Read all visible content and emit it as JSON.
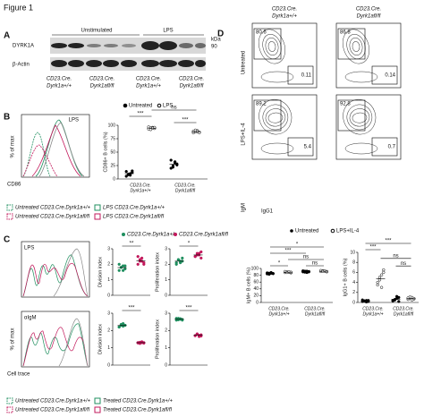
{
  "figure_title": "Figure 1",
  "panel_a": {
    "letter": "A",
    "headers": [
      "Unstimulated",
      "LPS"
    ],
    "rows": [
      "DYRK1A",
      "β-Actin"
    ],
    "kda_unit": "kDa",
    "kda": [
      "90"
    ],
    "lanes": [
      [
        "CD23.Cre.",
        "Dyrk1a+/+"
      ],
      [
        "CD23.Cre.",
        "Dyrk1afl/fl"
      ],
      [
        "CD23.Cre.",
        "Dyrk1a+/+"
      ],
      [
        "CD23.Cre.",
        "Dyrk1afl/fl"
      ]
    ]
  },
  "panel_b": {
    "letter": "B",
    "hist": {
      "label": "LPS",
      "xlabel": "CD86",
      "ylabel": "% of max"
    },
    "dots": {
      "ylabel": "CD86+ B cells (%)",
      "ylim": [
        0,
        100
      ],
      "yticks": [
        0,
        25,
        50,
        75,
        100
      ],
      "legend": [
        "Untreated",
        "LPS"
      ],
      "categories": [
        [
          "CD23.Cre.",
          "Dyrk1a+/+"
        ],
        [
          "CD23.Cre.",
          "Dyrk1afl/fl"
        ]
      ],
      "stars": [
        "***",
        "ns",
        "***"
      ],
      "groups": [
        {
          "color": "#000",
          "fill": "#000",
          "values": [
            5,
            8,
            10,
            12,
            14,
            9,
            7,
            15
          ]
        },
        {
          "color": "#000",
          "fill": "#fff",
          "values": [
            93,
            95,
            96,
            94,
            97,
            92,
            95,
            96
          ]
        },
        {
          "color": "#000",
          "fill": "#000",
          "values": [
            20,
            25,
            30,
            28,
            35,
            22,
            32,
            26
          ]
        },
        {
          "color": "#000",
          "fill": "#fff",
          "values": [
            86,
            88,
            90,
            87,
            89,
            91,
            88,
            86
          ]
        }
      ]
    },
    "legend": [
      "Untreated CD23.Cre.Dyrk1a+/+",
      "LPS CD23.Cre.Dyrk1a+/+",
      "Untreated CD23.Cre.Dyrk1afl/fl",
      "LPS CD23.Cre.Dyrk1afl/fl"
    ]
  },
  "panel_c": {
    "letter": "C",
    "legend": [
      "CD23.Cre.Dyrk1a+/+",
      "CD23.Cre.Dyrk1afl/fl"
    ],
    "hist_xlabel": "Cell trace",
    "hist_ylabel": "% of max",
    "rows": [
      {
        "label": "LPS",
        "plots": [
          {
            "ylabel": "Division index",
            "ylim": [
              0,
              3
            ],
            "yticks": [
              0,
              1,
              2,
              3
            ],
            "stars": [
              "**"
            ],
            "groups": [
              {
                "color": "#1f8f5f",
                "fill": "#1f8f5f",
                "values": [
                  1.6,
                  1.8,
                  1.9,
                  1.7,
                  2.0,
                  1.8,
                  1.6,
                  1.9
                ]
              },
              {
                "color": "#c2185b",
                "fill": "#c2185b",
                "values": [
                  2.0,
                  2.2,
                  2.4,
                  2.1,
                  2.5,
                  2.3,
                  2.2,
                  2.0
                ]
              }
            ]
          },
          {
            "ylabel": "Proliferation index",
            "ylim": [
              0,
              3
            ],
            "yticks": [
              0,
              1,
              2,
              3
            ],
            "stars": [
              "*"
            ],
            "groups": [
              {
                "color": "#1f8f5f",
                "fill": "#1f8f5f",
                "values": [
                  2.1,
                  2.3,
                  2.2,
                  2.4,
                  2.0,
                  2.3,
                  2.1,
                  2.2
                ]
              },
              {
                "color": "#c2185b",
                "fill": "#c2185b",
                "values": [
                  2.5,
                  2.7,
                  2.6,
                  2.8,
                  2.5,
                  2.6,
                  2.7,
                  2.4
                ]
              }
            ]
          }
        ]
      },
      {
        "label": "αIgM",
        "plots": [
          {
            "ylabel": "Division index",
            "ylim": [
              0,
              3
            ],
            "yticks": [
              0,
              1,
              2,
              3
            ],
            "stars": [
              "***"
            ],
            "groups": [
              {
                "color": "#1f8f5f",
                "fill": "#1f8f5f",
                "values": [
                  2.2,
                  2.3,
                  2.4,
                  2.3,
                  2.2,
                  2.35,
                  2.25,
                  2.3
                ]
              },
              {
                "color": "#c2185b",
                "fill": "#c2185b",
                "values": [
                  1.3,
                  1.25,
                  1.35,
                  1.3,
                  1.28,
                  1.32,
                  1.3,
                  1.27
                ]
              }
            ]
          },
          {
            "ylabel": "Proliferation index",
            "ylim": [
              0,
              3
            ],
            "yticks": [
              0,
              1,
              2,
              3
            ],
            "stars": [
              "***"
            ],
            "groups": [
              {
                "color": "#1f8f5f",
                "fill": "#1f8f5f",
                "values": [
                  2.6,
                  2.7,
                  2.65,
                  2.6,
                  2.7,
                  2.62,
                  2.68,
                  2.64
                ]
              },
              {
                "color": "#c2185b",
                "fill": "#c2185b",
                "values": [
                  1.7,
                  1.8,
                  1.65,
                  1.75,
                  1.7,
                  1.8,
                  1.72,
                  1.68
                ]
              }
            ]
          }
        ]
      }
    ],
    "legend_bottom": [
      "Untreated CD23.Cre.Dyrk1a+/+",
      "Treated CD23.Cre.Dyrk1a+/+",
      "Untreated CD23.Cre.Dyrk1afl/fl",
      "Treated CD23.Cre.Dyrk1afl/fl"
    ]
  },
  "panel_d": {
    "letter": "D",
    "columns": [
      [
        "CD23.Cre.",
        "Dyrk1a+/+"
      ],
      [
        "CD23.Cre.",
        "Dyrk1afl/fl"
      ]
    ],
    "rows": [
      "Untreated",
      "LPS+IL-4"
    ],
    "ylabel": "IgM",
    "xlabel": "IgG1",
    "gates": [
      [
        80.6,
        0.11
      ],
      [
        86.8,
        0.14
      ],
      [
        89.2,
        5.4
      ],
      [
        92.8,
        0.7
      ]
    ],
    "legend": [
      "Untreated",
      "LPS+IL-4"
    ],
    "plots": [
      {
        "ylabel": "IgM+ B cells (%)",
        "ylim": [
          0,
          100
        ],
        "yticks": [
          0,
          20,
          40,
          60,
          80,
          100
        ],
        "stars": [
          "*",
          "***",
          "*",
          "ns",
          "ns"
        ],
        "categories": [
          [
            "CD23.Cre.",
            "Dyrk1a+/+"
          ],
          [
            "CD23.Cre.",
            "Dyrk1afl/fl"
          ]
        ],
        "groups": [
          {
            "color": "#000",
            "fill": "#000",
            "values": [
              84,
              86,
              88,
              85,
              87,
              83,
              86,
              85
            ]
          },
          {
            "color": "#000",
            "fill": "#fff",
            "values": [
              88,
              90,
              89,
              87,
              91,
              88,
              90,
              89
            ]
          },
          {
            "color": "#000",
            "fill": "#000",
            "values": [
              90,
              92,
              88,
              91,
              93,
              89,
              92,
              90
            ]
          },
          {
            "color": "#000",
            "fill": "#fff",
            "values": [
              91,
              93,
              92,
              90,
              94,
              92,
              93,
              91
            ]
          }
        ]
      },
      {
        "ylabel": "IgG1+ B cells (%)",
        "ylim": [
          0,
          10
        ],
        "yticks": [
          0,
          2,
          4,
          6,
          8,
          10
        ],
        "stars": [
          "***",
          "***",
          "ns",
          "ns"
        ],
        "categories": [
          [
            "CD23.Cre.",
            "Dyrk1a+/+"
          ],
          [
            "CD23.Cre.",
            "Dyrk1afl/fl"
          ]
        ],
        "groups": [
          {
            "color": "#000",
            "fill": "#000",
            "values": [
              0.2,
              0.3,
              0.4,
              0.2,
              0.5,
              0.3,
              0.1,
              0.4
            ]
          },
          {
            "color": "#000",
            "fill": "#fff",
            "values": [
              3.5,
              4.5,
              5.5,
              6.5,
              4.0,
              5.0,
              3.0,
              6.0
            ]
          },
          {
            "color": "#000",
            "fill": "#000",
            "values": [
              0.3,
              0.5,
              0.8,
              1.0,
              0.4,
              0.6,
              1.2,
              0.2
            ]
          },
          {
            "color": "#000",
            "fill": "#fff",
            "values": [
              0.6,
              0.8,
              1.0,
              0.7,
              0.9,
              1.1,
              0.5,
              0.8
            ]
          }
        ]
      }
    ]
  }
}
